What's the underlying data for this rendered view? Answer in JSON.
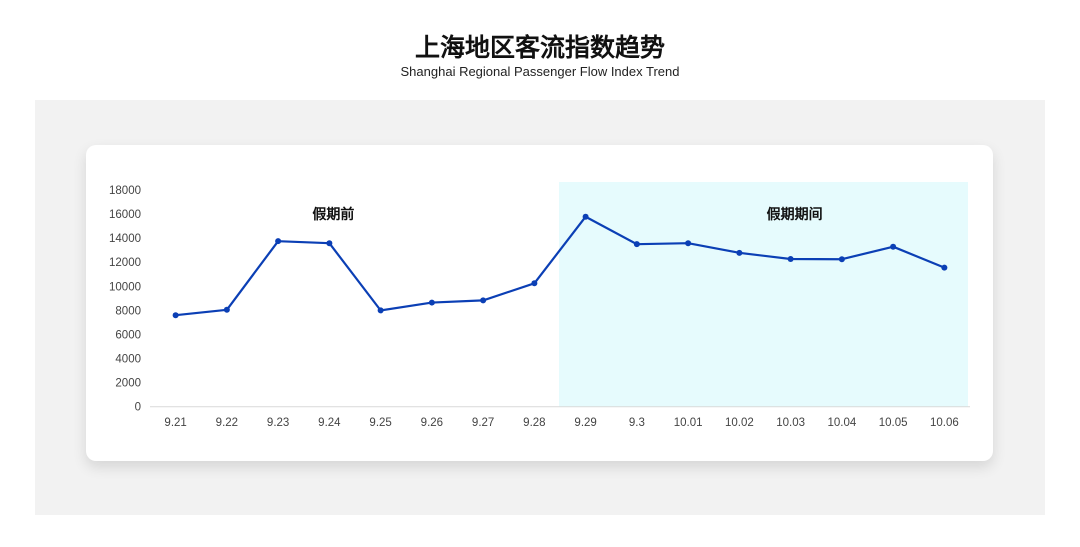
{
  "title": "上海地区客流指数趋势",
  "subtitle": "Shanghai Regional Passenger Flow Index Trend",
  "chart_data": {
    "type": "line",
    "categories": [
      "9.21",
      "9.22",
      "9.23",
      "9.24",
      "9.25",
      "9.26",
      "9.27",
      "9.28",
      "9.29",
      "9.3",
      "10.01",
      "10.02",
      "10.03",
      "10.04",
      "10.05",
      "10.06"
    ],
    "values": [
      7600,
      8050,
      13750,
      13580,
      8000,
      8650,
      8830,
      10250,
      15780,
      13500,
      13580,
      12780,
      12270,
      12250,
      13290,
      11550
    ],
    "ylim": [
      0,
      18000
    ],
    "yticks": [
      0,
      2000,
      4000,
      6000,
      8000,
      10000,
      12000,
      14000,
      16000,
      18000
    ],
    "grid": false,
    "line_color": "#0b3fb5",
    "highlight": {
      "from": "9.29",
      "to": "10.06",
      "color": "#e6fbfd"
    },
    "annotations": [
      {
        "text": "假期前",
        "at": "9.24"
      },
      {
        "text": "假期期间",
        "at": "10.03"
      }
    ]
  }
}
